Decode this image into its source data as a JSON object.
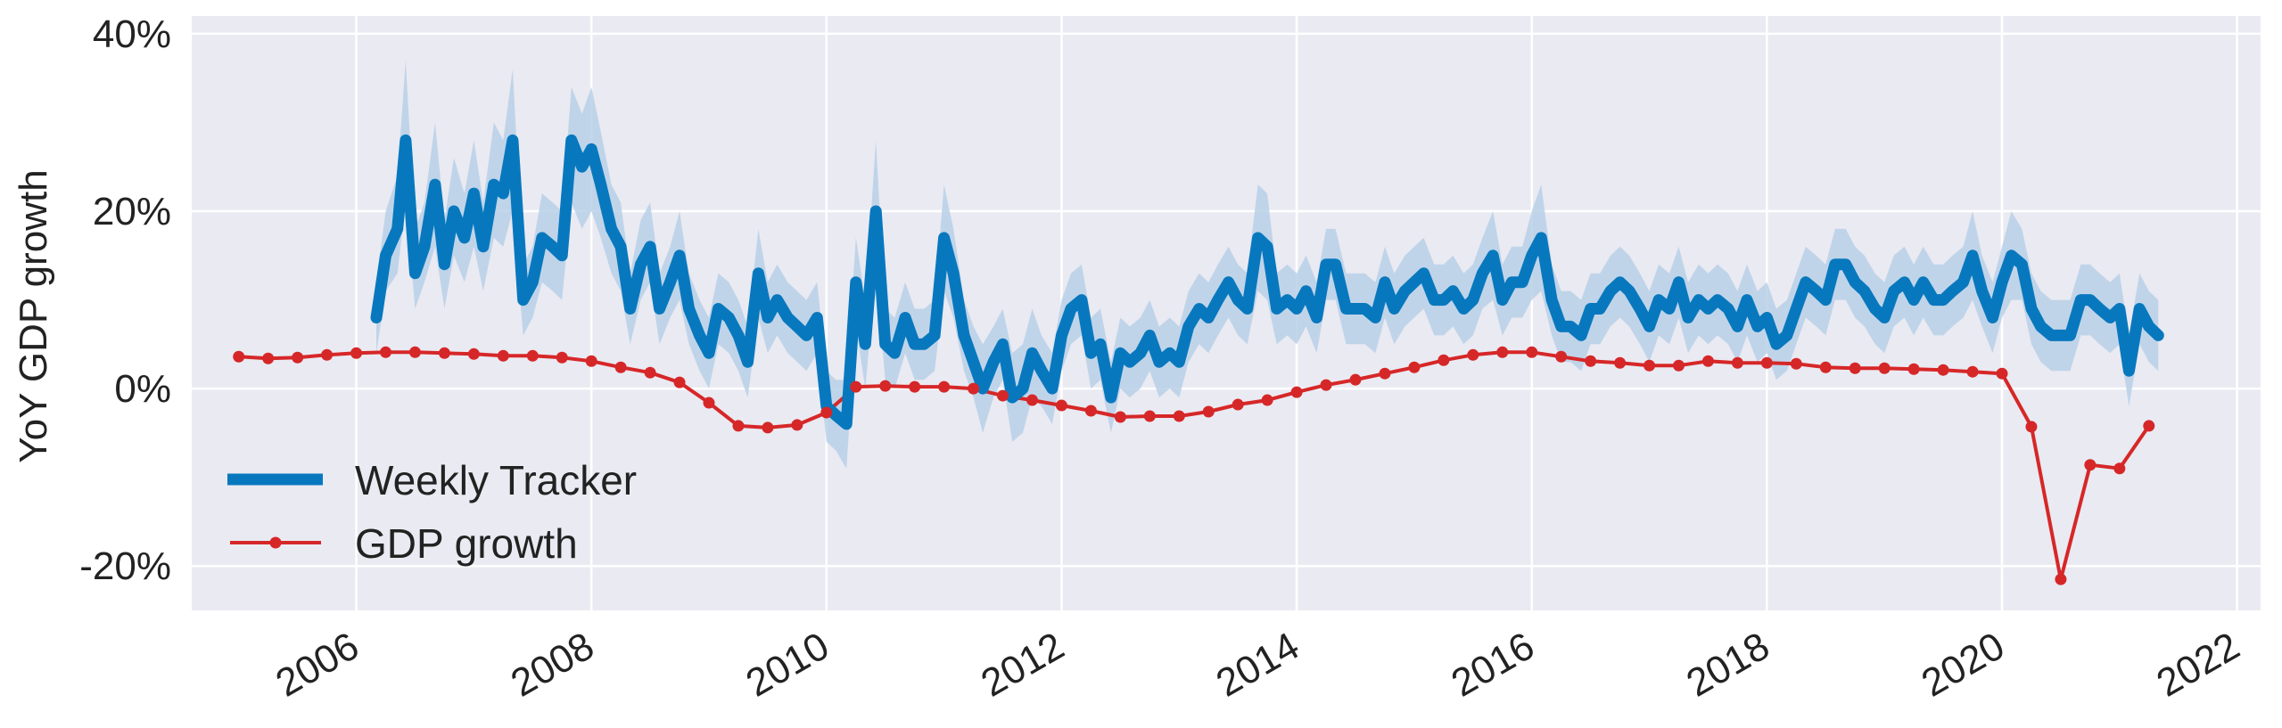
{
  "chart_data": {
    "type": "line",
    "title": "",
    "xlabel": "",
    "ylabel": "YoY GDP growth",
    "xlim": [
      2004.6,
      2022.2
    ],
    "ylim": [
      -25,
      42
    ],
    "x_ticks": [
      2006,
      2008,
      2010,
      2012,
      2014,
      2016,
      2018,
      2020,
      2022
    ],
    "x_tick_labels": [
      "2006",
      "2008",
      "2010",
      "2012",
      "2014",
      "2016",
      "2018",
      "2020",
      "2022"
    ],
    "y_ticks": [
      -20,
      0,
      20,
      40
    ],
    "y_tick_labels": [
      "-20%",
      "0%",
      "20%",
      "40%"
    ],
    "grid": true,
    "legend_position": "lower-left",
    "colors": {
      "background": "#eaeaf2",
      "grid": "#ffffff",
      "tracker": "#0878be",
      "band": "#b8d0e8",
      "gdp": "#d62728"
    },
    "series": [
      {
        "name": "Weekly Tracker",
        "style": "thick-line-with-confidence-band",
        "x": [
          2006.17,
          2006.25,
          2006.35,
          2006.42,
          2006.5,
          2006.58,
          2006.67,
          2006.75,
          2006.83,
          2006.92,
          2007.0,
          2007.08,
          2007.17,
          2007.25,
          2007.33,
          2007.42,
          2007.5,
          2007.58,
          2007.67,
          2007.75,
          2007.83,
          2007.92,
          2008.0,
          2008.08,
          2008.17,
          2008.25,
          2008.33,
          2008.42,
          2008.5,
          2008.58,
          2008.67,
          2008.75,
          2008.83,
          2008.92,
          2009.0,
          2009.08,
          2009.17,
          2009.25,
          2009.33,
          2009.42,
          2009.5,
          2009.58,
          2009.67,
          2009.75,
          2009.83,
          2009.92,
          2010.0,
          2010.08,
          2010.17,
          2010.25,
          2010.33,
          2010.42,
          2010.5,
          2010.58,
          2010.67,
          2010.75,
          2010.83,
          2010.92,
          2011.0,
          2011.08,
          2011.17,
          2011.25,
          2011.33,
          2011.42,
          2011.5,
          2011.58,
          2011.67,
          2011.75,
          2011.83,
          2011.92,
          2012.0,
          2012.08,
          2012.17,
          2012.25,
          2012.33,
          2012.42,
          2012.5,
          2012.58,
          2012.67,
          2012.75,
          2012.83,
          2012.92,
          2013.0,
          2013.08,
          2013.17,
          2013.25,
          2013.33,
          2013.42,
          2013.5,
          2013.58,
          2013.67,
          2013.75,
          2013.83,
          2013.92,
          2014.0,
          2014.08,
          2014.17,
          2014.25,
          2014.33,
          2014.42,
          2014.5,
          2014.58,
          2014.67,
          2014.75,
          2014.83,
          2014.92,
          2015.0,
          2015.08,
          2015.17,
          2015.25,
          2015.33,
          2015.42,
          2015.5,
          2015.58,
          2015.67,
          2015.75,
          2015.83,
          2015.92,
          2016.0,
          2016.08,
          2016.17,
          2016.25,
          2016.33,
          2016.42,
          2016.5,
          2016.58,
          2016.67,
          2016.75,
          2016.83,
          2016.92,
          2017.0,
          2017.08,
          2017.17,
          2017.25,
          2017.33,
          2017.42,
          2017.5,
          2017.58,
          2017.67,
          2017.75,
          2017.83,
          2017.92,
          2018.0,
          2018.08,
          2018.17,
          2018.25,
          2018.33,
          2018.42,
          2018.5,
          2018.58,
          2018.67,
          2018.75,
          2018.83,
          2018.92,
          2019.0,
          2019.08,
          2019.17,
          2019.25,
          2019.33,
          2019.42,
          2019.5,
          2019.58,
          2019.67,
          2019.75,
          2019.83,
          2019.92,
          2020.0,
          2020.08,
          2020.17,
          2020.25,
          2020.33,
          2020.42,
          2020.5,
          2020.58,
          2020.67,
          2020.75,
          2020.83,
          2020.92,
          2021.0,
          2021.08,
          2021.17,
          2021.25,
          2021.33
        ],
        "values": [
          8,
          15,
          18,
          28,
          13,
          16,
          23,
          14,
          20,
          17,
          22,
          16,
          23,
          22,
          28,
          10,
          12,
          17,
          16,
          15,
          28,
          25,
          27,
          23,
          18,
          16,
          9,
          14,
          16,
          9,
          12,
          15,
          9,
          6,
          4,
          9,
          8,
          6,
          3,
          13,
          8,
          10,
          8,
          7,
          6,
          8,
          -2,
          -3,
          -4,
          12,
          5,
          20,
          5,
          4,
          8,
          5,
          5,
          6,
          17,
          13,
          6,
          3,
          0,
          3,
          5,
          -1,
          0,
          4,
          2,
          0,
          6,
          9,
          10,
          4,
          5,
          -1,
          4,
          3,
          4,
          6,
          3,
          4,
          3,
          7,
          9,
          8,
          10,
          12,
          10,
          9,
          17,
          16,
          9,
          10,
          9,
          11,
          8,
          14,
          14,
          9,
          9,
          9,
          8,
          12,
          9,
          11,
          12,
          13,
          10,
          10,
          11,
          9,
          10,
          13,
          15,
          10,
          12,
          12,
          15,
          17,
          10,
          7,
          7,
          6,
          9,
          9,
          11,
          12,
          11,
          9,
          7,
          10,
          9,
          12,
          8,
          10,
          9,
          10,
          9,
          7,
          10,
          7,
          8,
          5,
          6,
          9,
          12,
          11,
          10,
          14,
          14,
          12,
          11,
          9,
          8,
          11,
          12,
          10,
          12,
          10,
          10,
          11,
          12,
          15,
          11,
          8,
          12,
          15,
          14,
          9,
          7,
          6,
          6,
          6,
          10,
          10,
          9,
          8,
          9,
          2,
          9,
          7,
          6
        ],
        "band_lower": [
          4,
          11,
          13,
          21,
          9,
          12,
          16,
          9,
          15,
          12,
          16,
          11,
          17,
          16,
          20,
          6,
          8,
          12,
          11,
          10,
          21,
          18,
          20,
          17,
          13,
          11,
          5,
          10,
          12,
          5,
          8,
          10,
          5,
          2,
          0,
          5,
          4,
          2,
          -1,
          8,
          4,
          6,
          4,
          3,
          2,
          4,
          -6,
          -7,
          -9,
          7,
          0,
          13,
          1,
          0,
          4,
          1,
          1,
          2,
          11,
          8,
          2,
          -1,
          -5,
          -1,
          1,
          -6,
          -5,
          -1,
          -2,
          -4,
          2,
          5,
          6,
          0,
          1,
          -5,
          0,
          -1,
          0,
          2,
          -1,
          0,
          -1,
          3,
          5,
          4,
          6,
          8,
          6,
          5,
          11,
          10,
          5,
          6,
          5,
          7,
          4,
          10,
          10,
          5,
          5,
          5,
          4,
          8,
          5,
          7,
          8,
          9,
          6,
          6,
          7,
          5,
          6,
          9,
          10,
          6,
          8,
          8,
          10,
          11,
          6,
          3,
          3,
          2,
          5,
          5,
          7,
          8,
          7,
          5,
          3,
          6,
          5,
          8,
          4,
          6,
          5,
          6,
          5,
          3,
          6,
          3,
          4,
          1,
          2,
          5,
          8,
          7,
          6,
          10,
          10,
          8,
          7,
          5,
          4,
          7,
          8,
          6,
          8,
          6,
          6,
          7,
          8,
          10,
          7,
          4,
          8,
          10,
          10,
          5,
          3,
          2,
          2,
          2,
          6,
          6,
          5,
          4,
          5,
          -2,
          5,
          3,
          2
        ],
        "band_upper": [
          12,
          20,
          24,
          37,
          18,
          21,
          30,
          19,
          26,
          22,
          28,
          21,
          30,
          28,
          36,
          14,
          16,
          22,
          21,
          20,
          34,
          31,
          34,
          29,
          23,
          21,
          13,
          19,
          21,
          13,
          16,
          20,
          13,
          10,
          8,
          13,
          12,
          10,
          7,
          18,
          12,
          14,
          12,
          11,
          10,
          12,
          2,
          1,
          1,
          17,
          10,
          28,
          9,
          8,
          12,
          9,
          9,
          10,
          23,
          18,
          10,
          7,
          5,
          7,
          9,
          4,
          5,
          9,
          6,
          4,
          10,
          13,
          14,
          8,
          9,
          3,
          8,
          7,
          8,
          10,
          7,
          8,
          7,
          11,
          13,
          12,
          14,
          16,
          14,
          13,
          23,
          22,
          13,
          14,
          13,
          15,
          12,
          18,
          18,
          13,
          13,
          13,
          12,
          16,
          13,
          15,
          16,
          17,
          14,
          14,
          15,
          13,
          14,
          17,
          20,
          14,
          16,
          16,
          20,
          23,
          14,
          11,
          11,
          10,
          13,
          13,
          15,
          16,
          15,
          13,
          11,
          14,
          13,
          16,
          12,
          14,
          13,
          14,
          13,
          11,
          14,
          11,
          12,
          9,
          10,
          13,
          16,
          15,
          14,
          18,
          18,
          16,
          15,
          13,
          12,
          15,
          16,
          14,
          16,
          14,
          14,
          15,
          16,
          20,
          15,
          12,
          16,
          20,
          18,
          13,
          11,
          10,
          10,
          10,
          14,
          14,
          13,
          12,
          13,
          6,
          13,
          11,
          10
        ]
      },
      {
        "name": "GDP growth",
        "style": "line-with-markers",
        "x": [
          2005.0,
          2005.25,
          2005.5,
          2005.75,
          2006.0,
          2006.25,
          2006.5,
          2006.75,
          2007.0,
          2007.25,
          2007.5,
          2007.75,
          2008.0,
          2008.25,
          2008.5,
          2008.75,
          2009.0,
          2009.25,
          2009.5,
          2009.75,
          2010.0,
          2010.25,
          2010.5,
          2010.75,
          2011.0,
          2011.25,
          2011.5,
          2011.75,
          2012.0,
          2012.25,
          2012.5,
          2012.75,
          2013.0,
          2013.25,
          2013.5,
          2013.75,
          2014.0,
          2014.25,
          2014.5,
          2014.75,
          2015.0,
          2015.25,
          2015.5,
          2015.75,
          2016.0,
          2016.25,
          2016.5,
          2016.75,
          2017.0,
          2017.25,
          2017.5,
          2017.75,
          2018.0,
          2018.25,
          2018.5,
          2018.75,
          2019.0,
          2019.25,
          2019.5,
          2019.75,
          2020.0,
          2020.25,
          2020.5,
          2020.75,
          2021.0,
          2021.25
        ],
        "values": [
          3.6,
          3.4,
          3.5,
          3.8,
          4.0,
          4.1,
          4.1,
          4.0,
          3.9,
          3.7,
          3.7,
          3.5,
          3.1,
          2.4,
          1.8,
          0.7,
          -1.6,
          -4.2,
          -4.4,
          -4.1,
          -2.7,
          0.2,
          0.3,
          0.2,
          0.2,
          0.0,
          -0.8,
          -1.3,
          -1.9,
          -2.5,
          -3.2,
          -3.1,
          -3.1,
          -2.6,
          -1.8,
          -1.3,
          -0.4,
          0.4,
          1.0,
          1.7,
          2.4,
          3.2,
          3.8,
          4.1,
          4.1,
          3.6,
          3.1,
          2.9,
          2.6,
          2.6,
          3.1,
          2.9,
          2.9,
          2.8,
          2.4,
          2.3,
          2.3,
          2.2,
          2.1,
          1.9,
          1.7,
          -4.3,
          -21.5,
          -8.6,
          -9.0,
          -4.2
        ]
      }
    ]
  }
}
